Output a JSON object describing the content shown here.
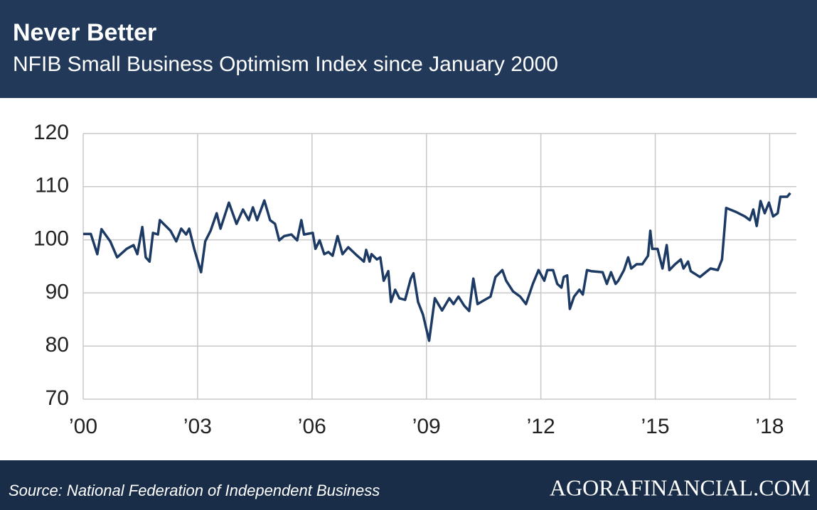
{
  "chart_data": {
    "type": "line",
    "title": "Never Better",
    "subtitle": "NFIB Small Business Optimism Index since January 2000",
    "source": "Source: National Federation of Independent Business",
    "brand": "AGORAFINANCIAL.COM",
    "x": [
      2000.0,
      2000.2,
      2000.37,
      2000.48,
      2000.71,
      2000.89,
      2001.14,
      2001.32,
      2001.42,
      2001.55,
      2001.64,
      2001.74,
      2001.83,
      2001.96,
      2002.01,
      2002.29,
      2002.44,
      2002.57,
      2002.7,
      2002.78,
      2002.91,
      2003.09,
      2003.2,
      2003.34,
      2003.5,
      2003.6,
      2003.82,
      2004.02,
      2004.19,
      2004.34,
      2004.45,
      2004.56,
      2004.75,
      2004.9,
      2005.03,
      2005.14,
      2005.27,
      2005.46,
      2005.61,
      2005.72,
      2005.79,
      2006.02,
      2006.09,
      2006.2,
      2006.32,
      2006.43,
      2006.54,
      2006.67,
      2006.8,
      2006.95,
      2007.14,
      2007.36,
      2007.42,
      2007.51,
      2007.56,
      2007.7,
      2007.79,
      2007.88,
      2008.0,
      2008.07,
      2008.18,
      2008.29,
      2008.44,
      2008.59,
      2008.66,
      2008.78,
      2008.91,
      2009.07,
      2009.22,
      2009.41,
      2009.6,
      2009.71,
      2009.84,
      2009.99,
      2010.12,
      2010.23,
      2010.34,
      2010.53,
      2010.68,
      2010.81,
      2010.99,
      2011.09,
      2011.27,
      2011.46,
      2011.61,
      2011.79,
      2011.94,
      2012.09,
      2012.17,
      2012.32,
      2012.43,
      2012.54,
      2012.6,
      2012.69,
      2012.76,
      2012.87,
      2013.01,
      2013.1,
      2013.21,
      2013.32,
      2013.62,
      2013.73,
      2013.84,
      2013.96,
      2014.03,
      2014.18,
      2014.29,
      2014.37,
      2014.51,
      2014.66,
      2014.81,
      2014.87,
      2014.92,
      2015.06,
      2015.19,
      2015.3,
      2015.37,
      2015.52,
      2015.67,
      2015.74,
      2015.86,
      2015.93,
      2016.17,
      2016.36,
      2016.45,
      2016.64,
      2016.75,
      2016.86,
      2017.1,
      2017.35,
      2017.48,
      2017.57,
      2017.66,
      2017.76,
      2017.87,
      2017.98,
      2018.09,
      2018.21,
      2018.28,
      2018.46,
      2018.54
    ],
    "series": [
      {
        "name": "NFIB Small Business Optimism Index",
        "color": "#1c3a63",
        "values": [
          101.1,
          101.1,
          97.3,
          102.0,
          99.7,
          96.7,
          98.3,
          99.0,
          97.3,
          102.4,
          96.7,
          95.9,
          101.3,
          101.0,
          103.7,
          101.7,
          99.7,
          102.1,
          101.0,
          102.1,
          98.3,
          93.9,
          99.7,
          101.7,
          105.0,
          102.1,
          107.0,
          103.0,
          105.7,
          103.7,
          106.1,
          103.7,
          107.4,
          103.7,
          103.0,
          99.9,
          100.7,
          101.0,
          99.9,
          103.7,
          101.0,
          101.3,
          98.3,
          99.9,
          97.3,
          97.7,
          97.0,
          100.7,
          97.3,
          98.6,
          97.3,
          95.9,
          98.1,
          95.9,
          97.3,
          96.3,
          96.7,
          92.3,
          94.1,
          88.3,
          90.6,
          89.0,
          88.7,
          92.7,
          93.7,
          88.3,
          85.9,
          81.0,
          89.0,
          86.7,
          89.0,
          87.9,
          89.3,
          87.6,
          86.6,
          92.7,
          87.9,
          88.7,
          89.3,
          93.0,
          94.3,
          92.3,
          90.3,
          89.3,
          87.9,
          91.7,
          94.3,
          92.3,
          94.3,
          94.3,
          91.7,
          91.0,
          93.0,
          93.3,
          87.0,
          89.3,
          90.6,
          89.7,
          94.3,
          94.1,
          93.9,
          91.7,
          93.9,
          91.7,
          92.3,
          94.3,
          96.7,
          94.6,
          95.4,
          95.4,
          97.0,
          101.7,
          98.3,
          98.3,
          94.6,
          99.0,
          94.3,
          95.4,
          96.3,
          94.6,
          95.9,
          94.1,
          93.0,
          94.1,
          94.6,
          94.3,
          96.3,
          106.0,
          105.3,
          104.4,
          103.7,
          105.7,
          102.6,
          107.3,
          105.0,
          107.0,
          104.4,
          105.0,
          108.1,
          108.1,
          108.8
        ]
      }
    ],
    "xlim": [
      2000,
      2018.7
    ],
    "xticks": [
      {
        "value": 2000,
        "label": "’00"
      },
      {
        "value": 2003,
        "label": "’03"
      },
      {
        "value": 2006,
        "label": "’06"
      },
      {
        "value": 2009,
        "label": "’09"
      },
      {
        "value": 2012,
        "label": "’12"
      },
      {
        "value": 2015,
        "label": "’15"
      },
      {
        "value": 2018,
        "label": "’18"
      }
    ],
    "ylim": [
      70,
      120
    ],
    "yticks": [
      70,
      80,
      90,
      100,
      110,
      120
    ],
    "grid": true
  }
}
